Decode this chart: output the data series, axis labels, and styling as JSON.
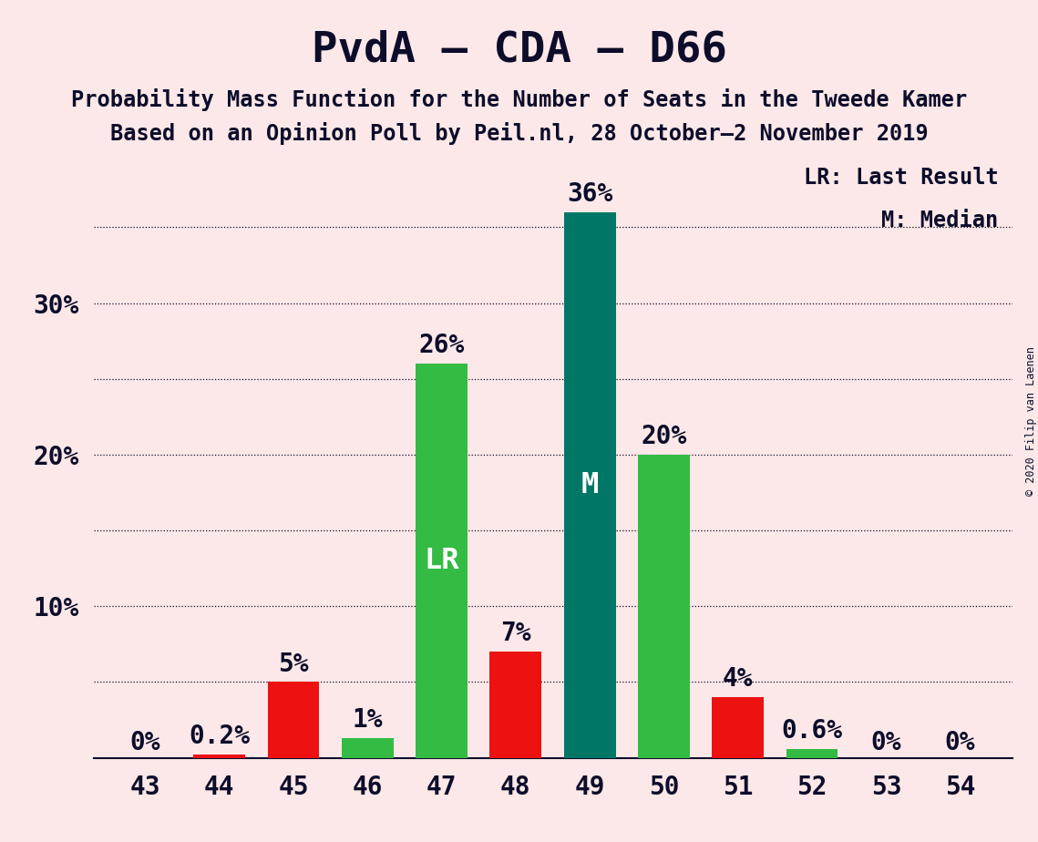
{
  "title": "PvdA – CDA – D66",
  "subtitle1": "Probability Mass Function for the Number of Seats in the Tweede Kamer",
  "subtitle2": "Based on an Opinion Poll by Peil.nl, 28 October–2 November 2019",
  "copyright": "© 2020 Filip van Laenen",
  "legend_lr": "LR: Last Result",
  "legend_m": "M: Median",
  "background_color": "#fce8e8",
  "categories": [
    43,
    44,
    45,
    46,
    47,
    48,
    49,
    50,
    51,
    52,
    53,
    54
  ],
  "red_values": [
    0.0,
    0.2,
    5.0,
    0.0,
    0.0,
    7.0,
    0.0,
    0.0,
    4.0,
    0.0,
    0.0,
    0.0
  ],
  "green_values": [
    0.0,
    0.0,
    0.0,
    1.3,
    26.0,
    0.0,
    36.0,
    20.0,
    0.0,
    0.6,
    0.0,
    0.0
  ],
  "red_color": "#ee1111",
  "green_color": "#33bb44",
  "teal_color": "#007766",
  "lr_seat": 47,
  "median_seat": 49,
  "ylim": [
    0,
    40
  ],
  "bar_width": 0.7,
  "title_fontsize": 34,
  "subtitle_fontsize": 17,
  "label_fontsize": 17,
  "tick_fontsize": 20,
  "annot_fontsize": 20,
  "lr_label_color": "#ffffff",
  "m_label_color": "#ffffff",
  "text_color": "#0d0d2b"
}
